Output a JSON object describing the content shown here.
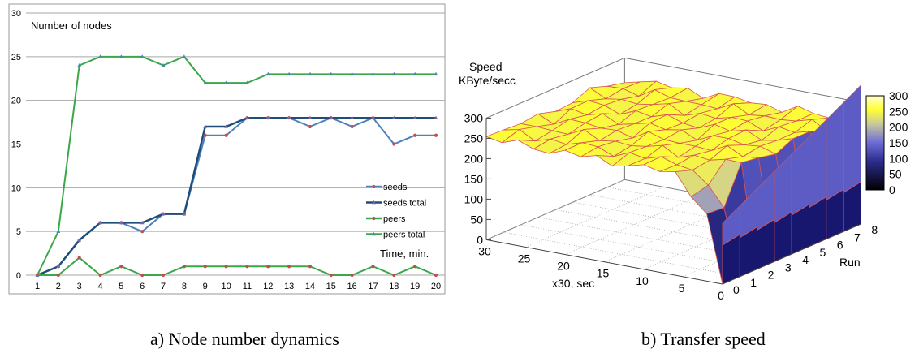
{
  "chart_data": [
    {
      "type": "line",
      "title": "Number of nodes",
      "xlabel": "Time, min.",
      "ylabel": "",
      "caption": "a) Node number dynamics",
      "x": [
        1,
        2,
        3,
        4,
        5,
        6,
        7,
        8,
        9,
        10,
        11,
        12,
        13,
        14,
        15,
        16,
        17,
        18,
        19,
        20
      ],
      "xticks": [
        "1",
        "2",
        "3",
        "4",
        "5",
        "6",
        "7",
        "8",
        "9",
        "10",
        "11",
        "12",
        "13",
        "14",
        "15",
        "16",
        "17",
        "18",
        "19",
        "20"
      ],
      "ylim": [
        0,
        30
      ],
      "yticks": [
        "0",
        "5",
        "10",
        "15",
        "20",
        "25",
        "30"
      ],
      "grid": true,
      "legend_position": "right",
      "series": [
        {
          "name": "seeds",
          "color": "#4f81bd",
          "marker": "#c0504d",
          "values": [
            0,
            1,
            4,
            6,
            6,
            5,
            7,
            7,
            16,
            16,
            18,
            18,
            18,
            17,
            18,
            17,
            18,
            15,
            16,
            16
          ]
        },
        {
          "name": "seeds total",
          "color": "#1f4e79",
          "marker": "#8064a2",
          "values": [
            0,
            1,
            4,
            6,
            6,
            6,
            7,
            7,
            17,
            17,
            18,
            18,
            18,
            18,
            18,
            18,
            18,
            18,
            18,
            18
          ]
        },
        {
          "name": "peers",
          "color": "#3aa84a",
          "marker": "#c0504d",
          "values": [
            0,
            0,
            2,
            0,
            1,
            0,
            0,
            1,
            1,
            1,
            1,
            1,
            1,
            1,
            0,
            0,
            1,
            0,
            1,
            0
          ]
        },
        {
          "name": "peers total",
          "color": "#3aa84a",
          "marker": "#4f81bd",
          "values": [
            0,
            5,
            24,
            25,
            25,
            25,
            24,
            25,
            22,
            22,
            22,
            23,
            23,
            23,
            23,
            23,
            23,
            23,
            23,
            23
          ]
        }
      ]
    },
    {
      "type": "surface",
      "title": "Speed KByte/secc",
      "title_lines": [
        "Speed",
        "KByte/secc"
      ],
      "xlabel": "x30, sec",
      "ylabel": "Run",
      "caption": "b) Transfer speed",
      "xticks": [
        "0",
        "5",
        "10",
        "15",
        "20",
        "25",
        "30"
      ],
      "yticks": [
        "0",
        "1",
        "2",
        "3",
        "4",
        "5",
        "6",
        "7",
        "8"
      ],
      "zticks": [
        "0",
        "50",
        "100",
        "150",
        "200",
        "250",
        "300"
      ],
      "colorbar_ticks": [
        "0",
        "50",
        "100",
        "150",
        "200",
        "250",
        "300"
      ],
      "zlim": [
        0,
        300
      ],
      "colorscale": [
        "#000000",
        "#2b2b8c",
        "#6b6bd6",
        "#c8c8a0",
        "#ffff33",
        "#ffffcc"
      ],
      "plateau_speed": 250,
      "low_run_speed": 120,
      "x_sample": [
        0,
        2,
        4,
        6,
        8,
        10,
        12,
        14,
        16,
        18,
        20,
        22,
        24,
        26,
        28,
        30
      ]
    }
  ]
}
